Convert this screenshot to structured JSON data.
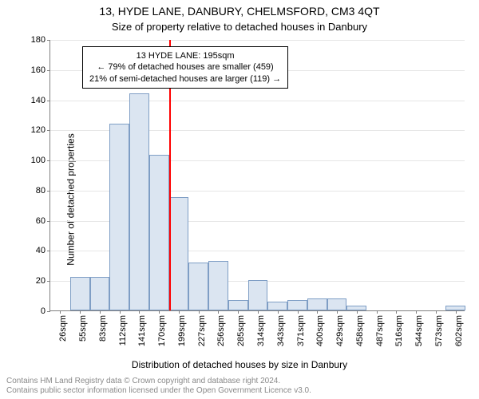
{
  "header": {
    "address": "13, HYDE LANE, DANBURY, CHELMSFORD, CM3 4QT",
    "subtitle": "Size of property relative to detached houses in Danbury",
    "title_fontsize": 14,
    "subtitle_fontsize": 13
  },
  "chart": {
    "type": "histogram",
    "xlabel": "Distribution of detached houses by size in Danbury",
    "ylabel": "Number of detached properties",
    "label_fontsize": 12,
    "tick_fontsize": 11,
    "background_color": "#ffffff",
    "grid_color": "#e6e6e6",
    "axis_color": "#808080",
    "bar_fill": "#dbe5f1",
    "bar_border": "#7f9ec5",
    "marker_color": "#ff0000",
    "ymax": 180,
    "ytick_step": 20,
    "categories": [
      "26sqm",
      "55sqm",
      "83sqm",
      "112sqm",
      "141sqm",
      "170sqm",
      "199sqm",
      "227sqm",
      "256sqm",
      "285sqm",
      "314sqm",
      "343sqm",
      "371sqm",
      "400sqm",
      "429sqm",
      "458sqm",
      "487sqm",
      "516sqm",
      "544sqm",
      "573sqm",
      "602sqm"
    ],
    "values": [
      0,
      22,
      22,
      124,
      144,
      103,
      75,
      32,
      33,
      7,
      20,
      6,
      7,
      8,
      8,
      3,
      0,
      0,
      0,
      0,
      3
    ],
    "marker_after_index": 5,
    "annotation": {
      "line1": "13 HYDE LANE: 195sqm",
      "line2": "← 79% of detached houses are smaller (459)",
      "line3": "21% of semi-detached houses are larger (119) →",
      "border_color": "#000000",
      "fontsize": 11
    }
  },
  "footer": {
    "line1": "Contains HM Land Registry data © Crown copyright and database right 2024.",
    "line2": "Contains public sector information licensed under the Open Government Licence v3.0.",
    "fontsize": 10
  }
}
